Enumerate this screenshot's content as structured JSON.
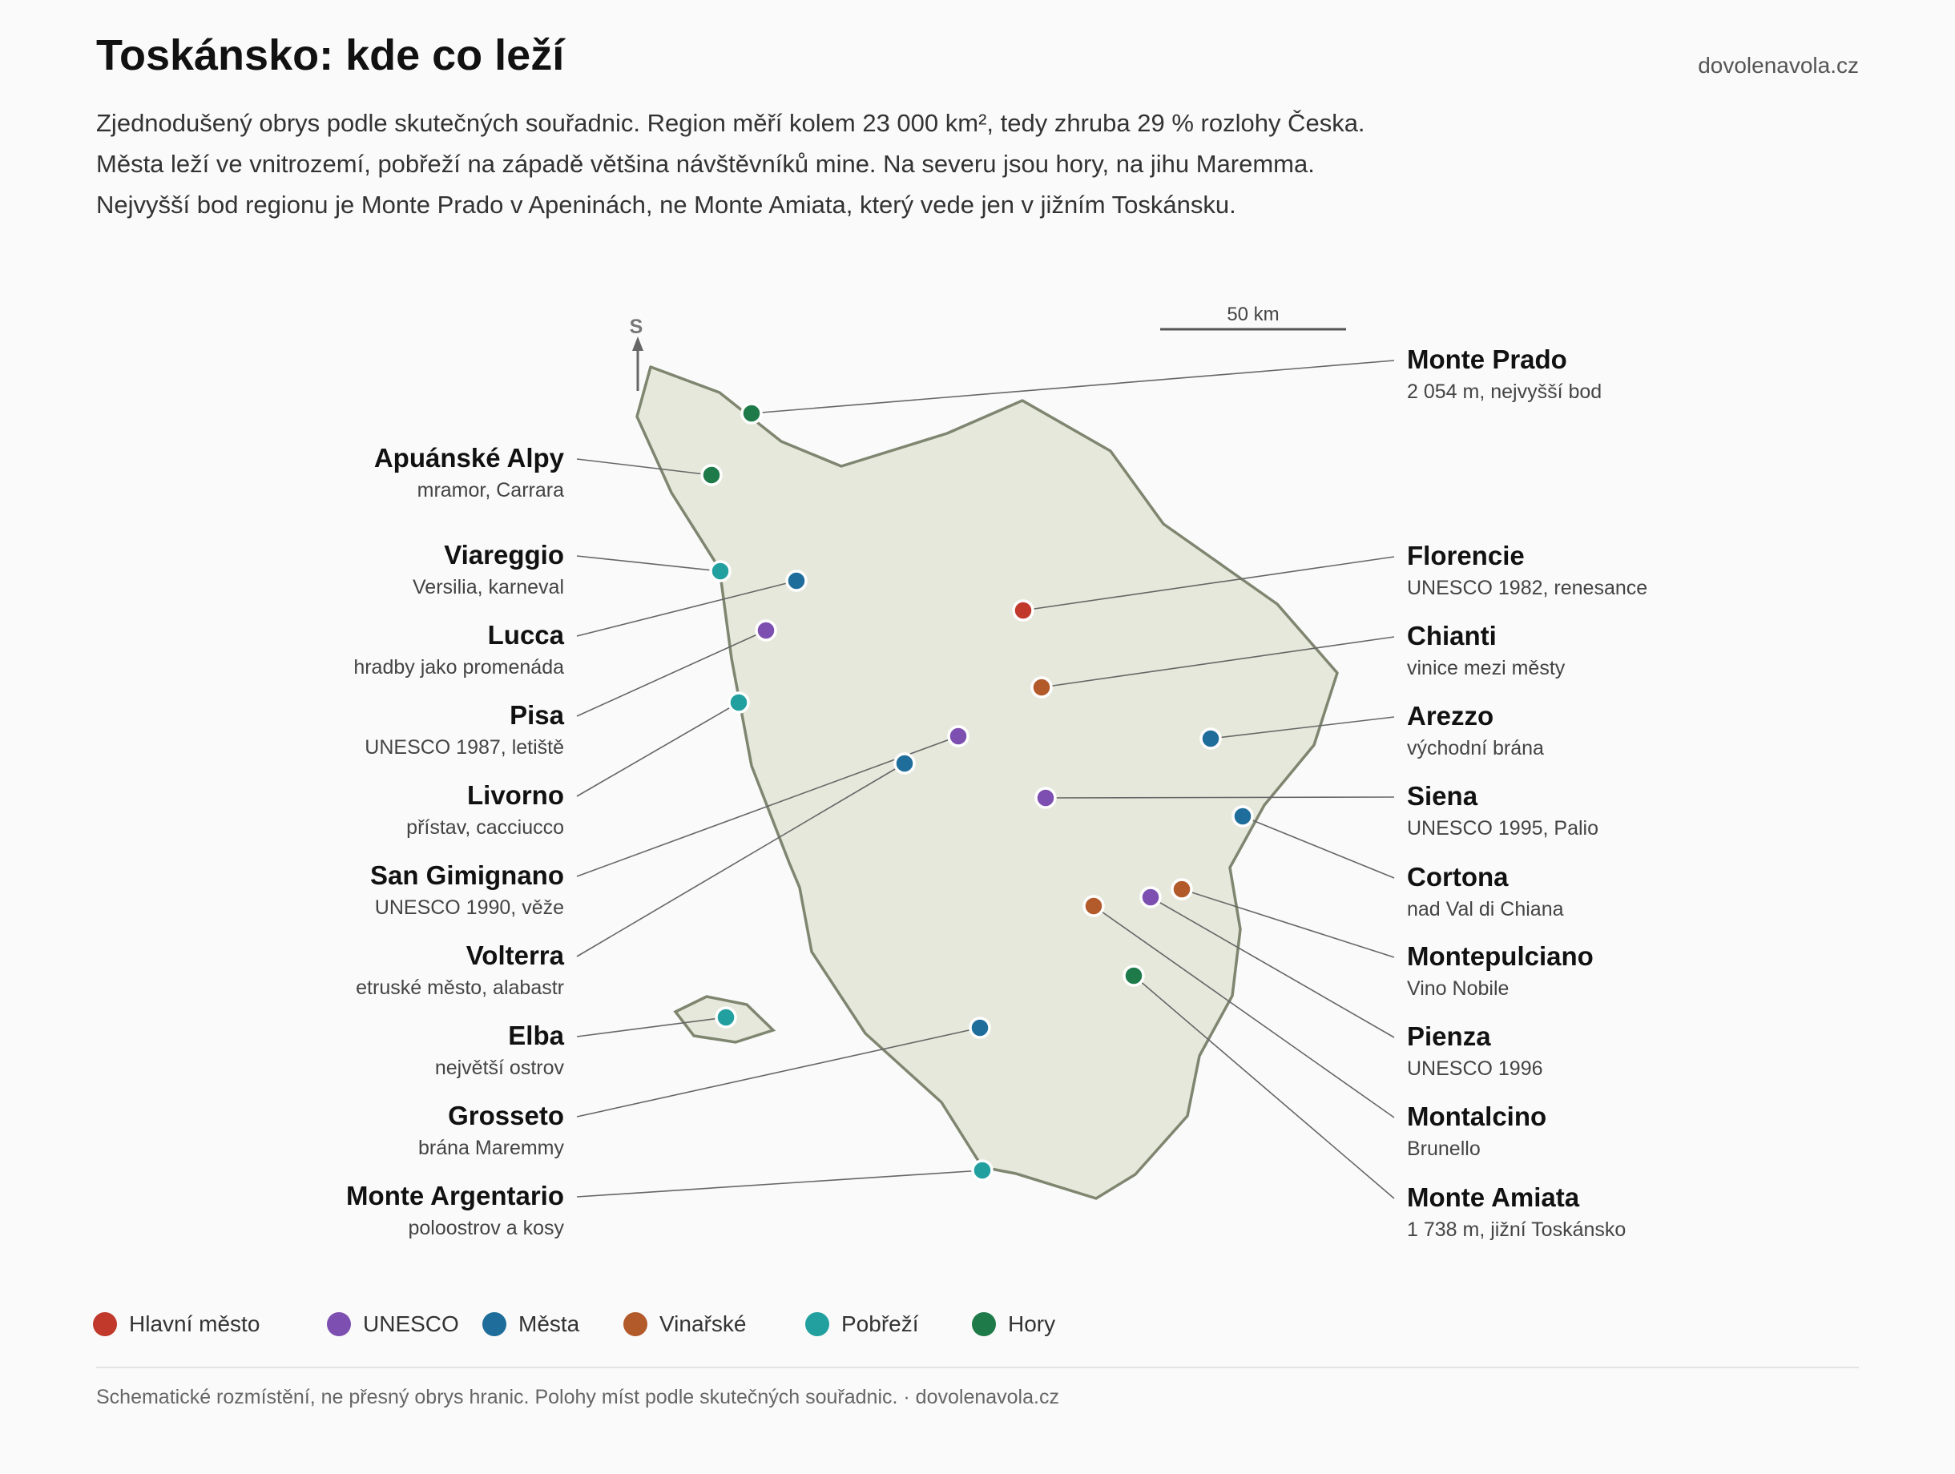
{
  "header": {
    "title": "Toskánsko: kde co leží",
    "brand": "dovolenavola.cz"
  },
  "description": [
    "Zjednodušený obrys podle skutečných souřadnic. Region měří kolem 23 000 km², tedy zhruba 29 % rozlohy Česka.",
    "Města leží ve vnitrozemí, pobřeží na západě většina návštěvníků mine. Na severu jsou hory, na jihu Maremma.",
    "Nejvyšší bod regionu je Monte Prado v Apeninách, ne Monte Amiata, který vede jen v jižním Toskánsku."
  ],
  "map": {
    "north_label": "S",
    "scale_label": "50 km",
    "land_color": "#e6e8dc",
    "outline_color": "#7f8670",
    "categories": {
      "capital": {
        "label": "Hlavní město",
        "color": "#c0392b"
      },
      "unesco": {
        "label": "UNESCO",
        "color": "#7d4fb0"
      },
      "city": {
        "label": "Města",
        "color": "#1f6d9b"
      },
      "wine": {
        "label": "Vinařské",
        "color": "#b35a2b"
      },
      "coast": {
        "label": "Pobřeží",
        "color": "#22a0a0"
      },
      "mountain": {
        "label": "Hory",
        "color": "#1f7a4a"
      }
    },
    "places": [
      {
        "name": "Monte Prado",
        "note": "2 054 m, nejvyšší bod",
        "category": "mountain"
      },
      {
        "name": "Apuánské Alpy",
        "note": "mramor, Carrara",
        "category": "mountain"
      },
      {
        "name": "Viareggio",
        "note": "Versilia, karneval",
        "category": "coast"
      },
      {
        "name": "Lucca",
        "note": "hradby jako promenáda",
        "category": "city"
      },
      {
        "name": "Florencie",
        "note": "UNESCO 1982, renesance",
        "category": "capital"
      },
      {
        "name": "Pisa",
        "note": "UNESCO 1987, letiště",
        "category": "unesco"
      },
      {
        "name": "Chianti",
        "note": "vinice mezi městy",
        "category": "wine"
      },
      {
        "name": "Livorno",
        "note": "přístav, cacciucco",
        "category": "coast"
      },
      {
        "name": "San Gimignano",
        "note": "UNESCO 1990, věže",
        "category": "unesco"
      },
      {
        "name": "Arezzo",
        "note": "východní brána",
        "category": "city"
      },
      {
        "name": "Volterra",
        "note": "etruské město, alabastr",
        "category": "city"
      },
      {
        "name": "Siena",
        "note": "UNESCO 1995, Palio",
        "category": "unesco"
      },
      {
        "name": "Cortona",
        "note": "nad Val di Chiana",
        "category": "city"
      },
      {
        "name": "Montepulciano",
        "note": "Vino Nobile",
        "category": "wine"
      },
      {
        "name": "Pienza",
        "note": "UNESCO 1996",
        "category": "unesco"
      },
      {
        "name": "Montalcino",
        "note": "Brunello",
        "category": "wine"
      },
      {
        "name": "Elba",
        "note": "největší ostrov",
        "category": "coast"
      },
      {
        "name": "Monte Amiata",
        "note": "1 738 m, jižní Toskánsko",
        "category": "mountain"
      },
      {
        "name": "Grosseto",
        "note": "brána Maremmy",
        "category": "city"
      },
      {
        "name": "Monte Argentario",
        "note": "poloostrov a kosy",
        "category": "coast"
      }
    ]
  },
  "legend": [
    {
      "label": "Hlavní město",
      "color": "#c0392b"
    },
    {
      "label": "UNESCO",
      "color": "#7d4fb0"
    },
    {
      "label": "Města",
      "color": "#1f6d9b"
    },
    {
      "label": "Vinařské",
      "color": "#b35a2b"
    },
    {
      "label": "Pobřeží",
      "color": "#22a0a0"
    },
    {
      "label": "Hory",
      "color": "#1f7a4a"
    }
  ],
  "footer": "Schematické rozmístění, ne přesný obrys hranic. Polohy míst podle skutečných souřadnic. · dovolenavola.cz"
}
